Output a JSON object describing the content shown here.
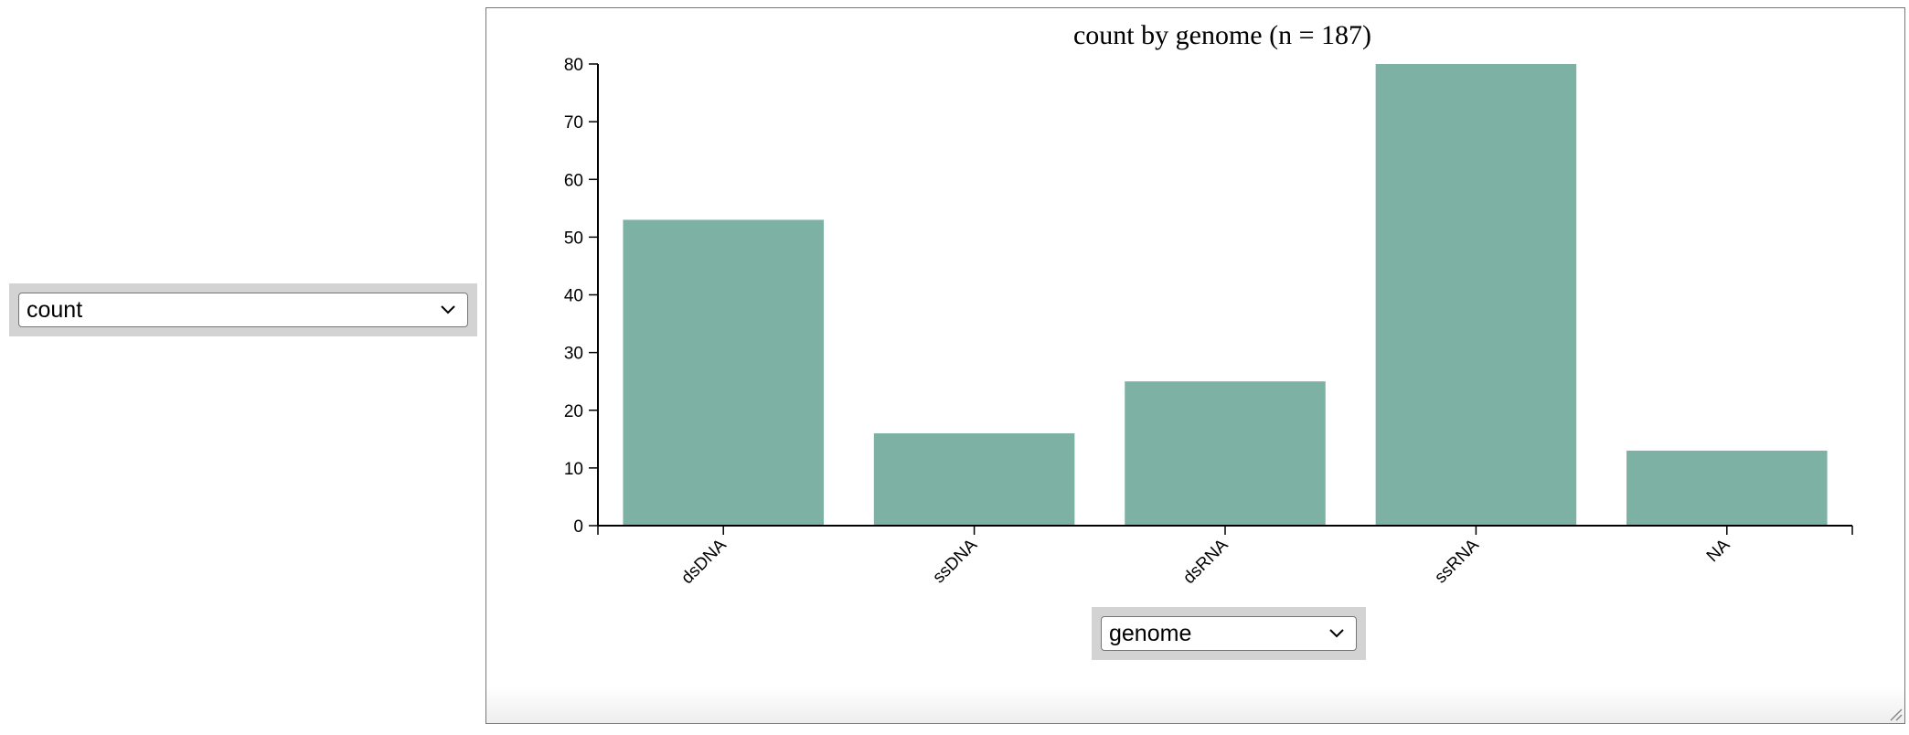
{
  "controls": {
    "y_select": {
      "selected": "count"
    },
    "x_select": {
      "selected": "genome"
    }
  },
  "colors": {
    "bar": "#7db1a3",
    "axis": "#000000"
  },
  "chart_data": {
    "type": "bar",
    "title": "count by genome (n = 187)",
    "categories": [
      "dsDNA",
      "ssDNA",
      "dsRNA",
      "ssRNA",
      "NA"
    ],
    "values": [
      53,
      16,
      25,
      80,
      13
    ],
    "ylim": [
      0,
      80
    ],
    "yticks": [
      0,
      10,
      20,
      30,
      40,
      50,
      60,
      70,
      80
    ],
    "xlabel": "",
    "ylabel": "",
    "grid": false,
    "legend": "none"
  }
}
